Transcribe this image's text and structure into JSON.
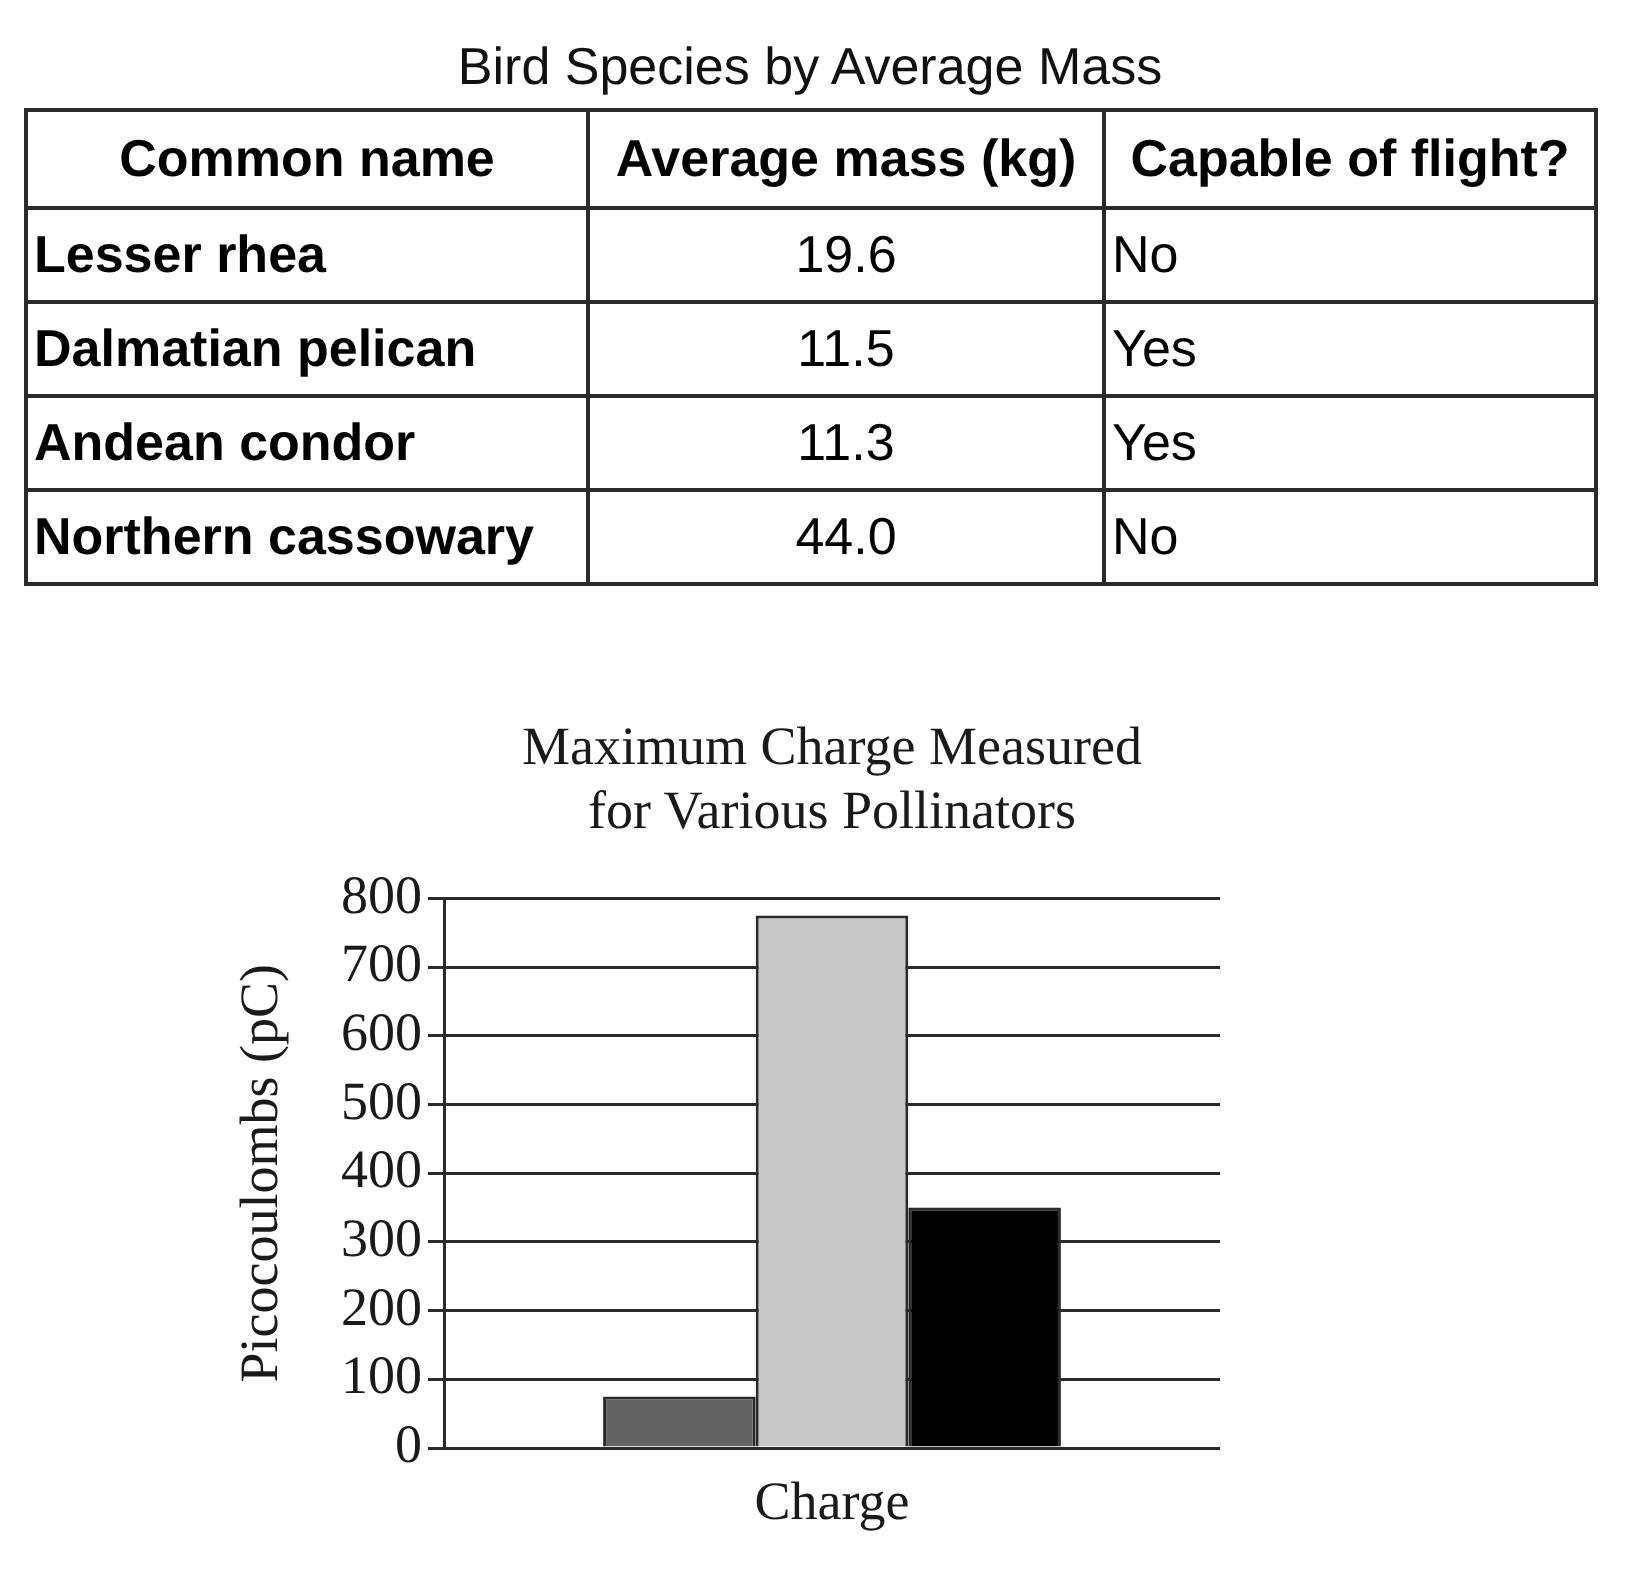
{
  "chart_data": [
    {
      "type": "other",
      "title": "Bird Species by Average Mass",
      "categories": [
        "Common name",
        "Average mass (kg)",
        "Capable of flight?"
      ],
      "cell_labels": [
        [
          "Lesser rhea",
          "19.6",
          "No"
        ],
        [
          "Dalmatian pelican",
          "11.5",
          "Yes"
        ],
        [
          "Andean condor",
          "11.3",
          "Yes"
        ],
        [
          "Northern cassowary",
          "44.0",
          "No"
        ]
      ]
    },
    {
      "type": "bar",
      "title": "Maximum Charge Measured for Various Pollinators",
      "ylabel": "Picocoulombs (pC)",
      "categories": [
        "Charge"
      ],
      "series": [
        {
          "color": "#636363",
          "values": [
            75
          ]
        },
        {
          "color": "#c8c8c8",
          "values": [
            775
          ]
        },
        {
          "color": "#000000",
          "values": [
            350
          ]
        }
      ],
      "ylim": [
        0,
        800
      ],
      "yticks": [
        0,
        100,
        200,
        300,
        400,
        500,
        600,
        700,
        800
      ],
      "grid": "y"
    }
  ]
}
